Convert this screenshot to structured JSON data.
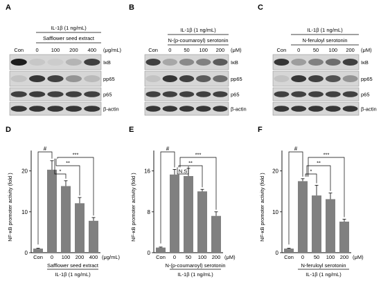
{
  "blots": [
    {
      "letter": "A",
      "treatment": "IL-1β (1 ng/mL)",
      "compound": "Safflower seed extract",
      "lanes": [
        "Con",
        "0",
        "100",
        "200",
        "400"
      ],
      "unit": "(μg/mL)",
      "proteins": [
        "IκB",
        "pp65",
        "p65",
        "β-actin"
      ],
      "intensity": [
        [
          0.98,
          0.08,
          0.05,
          0.18,
          0.8
        ],
        [
          0.1,
          0.85,
          0.8,
          0.35,
          0.15
        ],
        [
          0.8,
          0.82,
          0.8,
          0.8,
          0.8
        ],
        [
          0.85,
          0.85,
          0.85,
          0.85,
          0.85
        ]
      ]
    },
    {
      "letter": "B",
      "treatment": "IL-1β (1 ng/mL)",
      "compound": "N-(p-coumaroyl) serotonin",
      "lanes": [
        "Con",
        "0",
        "50",
        "100",
        "200"
      ],
      "unit": "(μM)",
      "proteins": [
        "IκB",
        "pp65",
        "p65",
        "β-actin"
      ],
      "intensity": [
        [
          0.8,
          0.25,
          0.4,
          0.45,
          0.65
        ],
        [
          0.1,
          0.85,
          0.8,
          0.65,
          0.55
        ],
        [
          0.8,
          0.8,
          0.8,
          0.8,
          0.8
        ],
        [
          0.85,
          0.85,
          0.85,
          0.85,
          0.85
        ]
      ]
    },
    {
      "letter": "C",
      "treatment": "IL-1β (1 ng/mL)",
      "compound": "N-feruloyl serotonin",
      "lanes": [
        "Con",
        "0",
        "50",
        "100",
        "200"
      ],
      "unit": "(μM)",
      "proteins": [
        "IκB",
        "pp65",
        "p65",
        "β-actin"
      ],
      "intensity": [
        [
          0.85,
          0.3,
          0.45,
          0.55,
          0.8
        ],
        [
          0.1,
          0.85,
          0.8,
          0.7,
          0.35
        ],
        [
          0.8,
          0.8,
          0.8,
          0.8,
          0.8
        ],
        [
          0.85,
          0.85,
          0.85,
          0.85,
          0.85
        ]
      ]
    }
  ],
  "chart_data": [
    {
      "letter": "D",
      "type": "bar",
      "ylabel": "NF-κB promoter activity (fold )",
      "ylim": [
        0,
        25
      ],
      "yticks": [
        0,
        10,
        20
      ],
      "categories": [
        "Con",
        "0",
        "100",
        "200",
        "400"
      ],
      "values": [
        1.0,
        20.3,
        16.3,
        12.1,
        7.8
      ],
      "errors": [
        0.1,
        2.2,
        1.3,
        1.4,
        0.8
      ],
      "unit": "(μg/mL)",
      "treatment_label": "Safflower seed extract",
      "group_label": "IL-1β (1 ng/mL)",
      "significance": [
        "#",
        "*",
        "**",
        "***"
      ]
    },
    {
      "letter": "E",
      "type": "bar",
      "ylabel": "NF-κB promoter activity (fold )",
      "ylim": [
        0,
        20
      ],
      "yticks": [
        0,
        8,
        16
      ],
      "categories": [
        "Con",
        "0",
        "50",
        "100",
        "200"
      ],
      "values": [
        1.0,
        15.3,
        15.0,
        12.0,
        7.2
      ],
      "errors": [
        0.1,
        1.0,
        1.5,
        0.4,
        0.8
      ],
      "unit": "(μM)",
      "treatment_label": "N-(p-coumaroyl) serotonin",
      "group_label": "IL-1β (1 ng/mL)",
      "significance": [
        "#",
        "N.S",
        "**",
        "***"
      ]
    },
    {
      "letter": "F",
      "type": "bar",
      "ylabel": "NF-κB promoter activity (fold )",
      "ylim": [
        0,
        25
      ],
      "yticks": [
        0,
        10,
        20
      ],
      "categories": [
        "Con",
        "0",
        "50",
        "100",
        "200"
      ],
      "values": [
        1.0,
        17.5,
        14.0,
        13.1,
        7.6
      ],
      "errors": [
        0.1,
        0.6,
        2.5,
        1.5,
        0.6
      ],
      "unit": "(μM)",
      "treatment_label": "N-feruloyl serotonin",
      "group_label": "IL-1β (1 ng/mL)",
      "significance": [
        "#",
        "*",
        "**",
        "***"
      ]
    }
  ],
  "colors": {
    "bar": "#808080",
    "axis": "#000000",
    "blot_bg": "#d6d6d6",
    "band": "#1a1a1a"
  }
}
